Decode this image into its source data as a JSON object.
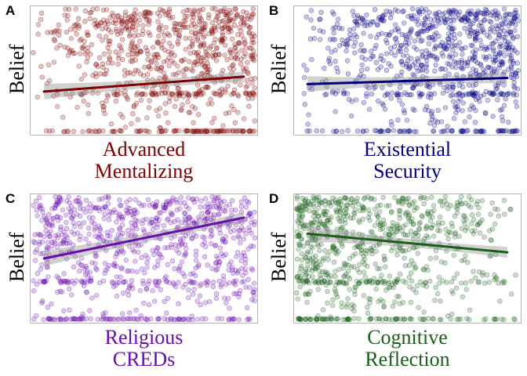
{
  "chart_data": [
    {
      "type": "scatter",
      "panel": "A",
      "ylabel": "Belief",
      "xlabel_lines": [
        "Advanced",
        "Mentalizing"
      ],
      "color": "#7f0000",
      "trend": {
        "start": 0.33,
        "end": 0.45
      },
      "grid": false,
      "x_distribution": "right-skewed",
      "y_distribution": "top-heavy, floor cluster at bottom"
    },
    {
      "type": "scatter",
      "panel": "B",
      "ylabel": "Belief",
      "xlabel_lines": [
        "Existential",
        "Security"
      ],
      "color": "#00007f",
      "trend": {
        "start": 0.39,
        "end": 0.44
      },
      "grid": false,
      "x_distribution": "right-skewed",
      "y_distribution": "top-heavy, floor cluster at bottom"
    },
    {
      "type": "scatter",
      "panel": "C",
      "ylabel": "Belief",
      "xlabel_lines": [
        "Religious",
        "CREDs"
      ],
      "color": "#6a0dad",
      "trend": {
        "start": 0.5,
        "end": 0.83
      },
      "grid": false,
      "x_distribution": "uniform",
      "y_distribution": "top-heavy, floor cluster at bottom"
    },
    {
      "type": "scatter",
      "panel": "D",
      "ylabel": "Belief",
      "xlabel_lines": [
        "Cognitive",
        "Reflection"
      ],
      "color": "#1a5e1a",
      "trend": {
        "start": 0.7,
        "end": 0.55
      },
      "grid": false,
      "x_distribution": "left-skewed",
      "y_distribution": "top-heavy, floor cluster at bottom"
    }
  ],
  "colors": {
    "A": "#7f0000",
    "B": "#00007f",
    "C": "#6a0dad",
    "D": "#1a5e1a",
    "ribbon": "#999999",
    "frame": "#b3b3b3"
  }
}
